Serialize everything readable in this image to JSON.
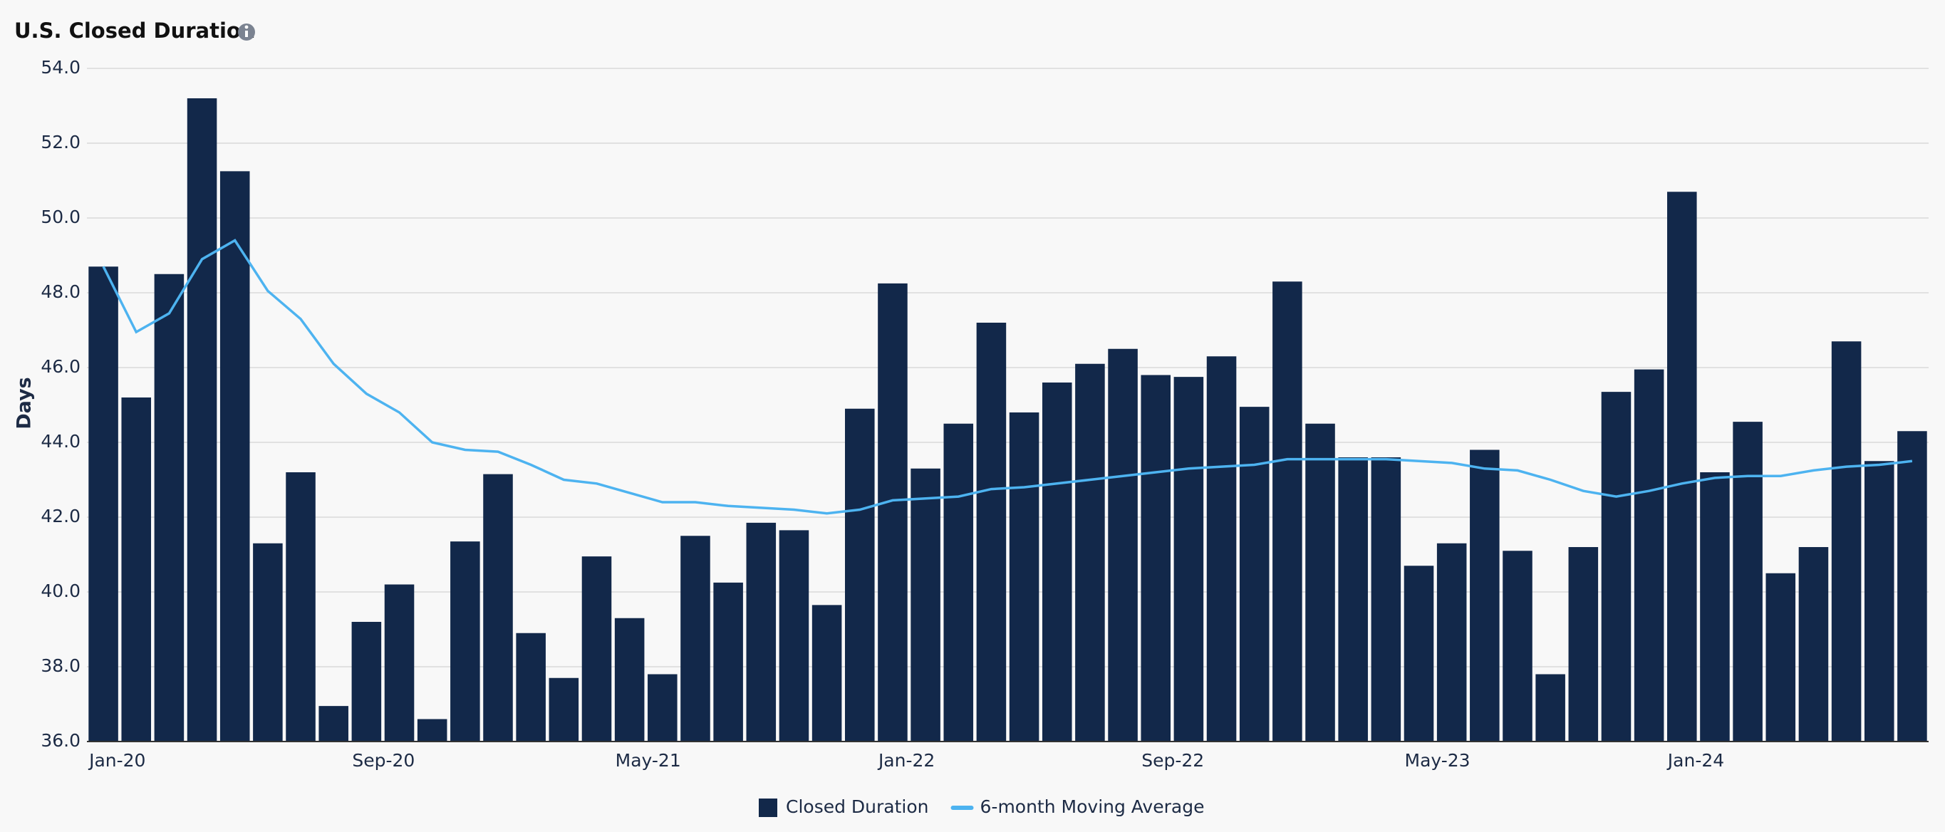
{
  "chart_data": {
    "type": "bar-line",
    "title": "U.S. Closed Duration",
    "y_label": "Days",
    "categories": [
      "Jan-20",
      null,
      null,
      null,
      null,
      null,
      null,
      null,
      "Sep-20",
      null,
      null,
      null,
      null,
      null,
      null,
      null,
      "May-21",
      null,
      null,
      null,
      null,
      null,
      null,
      null,
      "Jan-22",
      null,
      null,
      null,
      null,
      null,
      null,
      null,
      "Sep-22",
      null,
      null,
      null,
      null,
      null,
      null,
      null,
      "May-23",
      null,
      null,
      null,
      null,
      null,
      null,
      null,
      "Jan-24",
      null,
      null,
      null,
      null,
      null,
      null,
      null
    ],
    "series": [
      {
        "name": "Closed Duration",
        "type": "bar",
        "color": "#12284a",
        "values": [
          48.7,
          45.2,
          48.5,
          53.2,
          51.25,
          41.3,
          43.2,
          36.95,
          39.2,
          40.2,
          36.6,
          41.35,
          43.15,
          38.9,
          37.7,
          40.95,
          39.3,
          37.8,
          41.5,
          40.25,
          41.85,
          41.65,
          39.65,
          44.9,
          48.25,
          43.3,
          44.5,
          47.2,
          44.8,
          45.6,
          46.1,
          46.5,
          45.8,
          45.75,
          46.3,
          44.95,
          48.3,
          44.5,
          43.6,
          43.6,
          40.7,
          41.3,
          43.8,
          41.1,
          37.8,
          41.2,
          45.35,
          45.95,
          50.7,
          43.2,
          44.55,
          40.5,
          41.2,
          46.7,
          43.5,
          44.3
        ]
      },
      {
        "name": "6-month Moving Average",
        "type": "line",
        "color": "#4db3f0",
        "values": [
          48.7,
          46.95,
          47.45,
          48.9,
          49.4,
          48.05,
          47.3,
          46.1,
          45.3,
          44.8,
          44.0,
          43.8,
          43.75,
          43.4,
          43.0,
          42.9,
          42.65,
          42.4,
          42.4,
          42.3,
          42.25,
          42.2,
          42.1,
          42.2,
          42.45,
          42.5,
          42.55,
          42.75,
          42.8,
          42.9,
          43.0,
          43.1,
          43.2,
          43.3,
          43.35,
          43.4,
          43.55,
          43.55,
          43.55,
          43.55,
          43.5,
          43.45,
          43.3,
          43.25,
          43.0,
          42.7,
          42.55,
          42.7,
          42.9,
          43.05,
          43.1,
          43.1,
          43.25,
          43.35,
          43.4,
          43.5
        ]
      }
    ],
    "ylim": [
      36,
      54
    ],
    "yticks": [
      {
        "value": 36,
        "label": "36.0"
      },
      {
        "value": 38,
        "label": "38.0"
      },
      {
        "value": 40,
        "label": "40.0"
      },
      {
        "value": 42,
        "label": "42.0"
      },
      {
        "value": 44,
        "label": "44.0"
      },
      {
        "value": 46,
        "label": "46.0"
      },
      {
        "value": 48,
        "label": "48.0"
      },
      {
        "value": 50,
        "label": "50.0"
      },
      {
        "value": 52,
        "label": "52.0"
      },
      {
        "value": 54,
        "label": "54.0"
      }
    ],
    "grid": true,
    "legend": "bottom"
  }
}
